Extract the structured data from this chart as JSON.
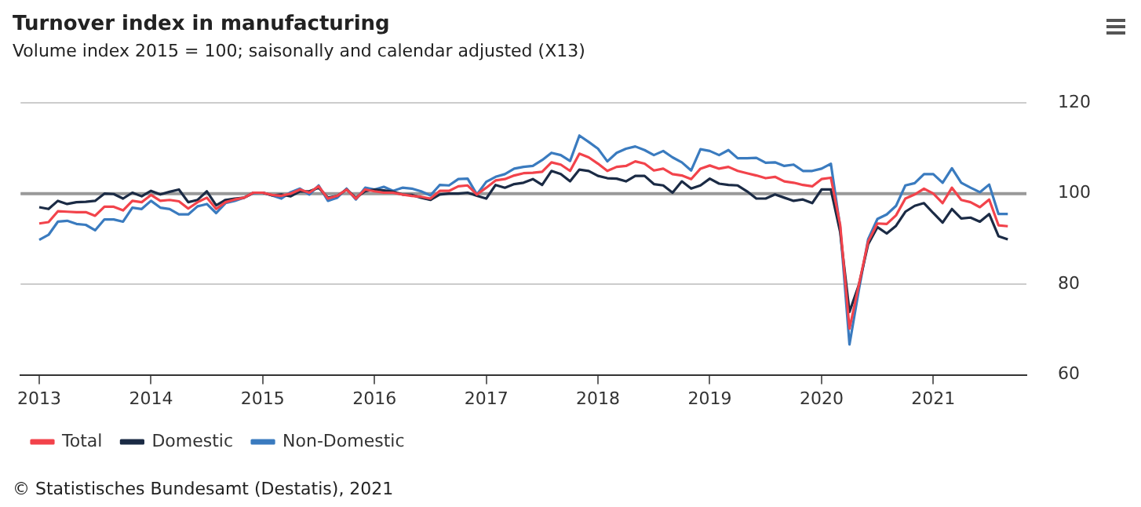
{
  "chart_data": {
    "type": "line",
    "title": "Turnover index in manufacturing",
    "subtitle": "Volume index 2015 = 100; saisonally and calendar adjusted (X13)",
    "annotations": [
      "© Statistisches Bundesamt (Destatis), 2021"
    ],
    "x": [
      "2013-01",
      "2013-02",
      "2013-03",
      "2013-04",
      "2013-05",
      "2013-06",
      "2013-07",
      "2013-08",
      "2013-09",
      "2013-10",
      "2013-11",
      "2013-12",
      "2014-01",
      "2014-02",
      "2014-03",
      "2014-04",
      "2014-05",
      "2014-06",
      "2014-07",
      "2014-08",
      "2014-09",
      "2014-10",
      "2014-11",
      "2014-12",
      "2015-01",
      "2015-02",
      "2015-03",
      "2015-04",
      "2015-05",
      "2015-06",
      "2015-07",
      "2015-08",
      "2015-09",
      "2015-10",
      "2015-11",
      "2015-12",
      "2016-01",
      "2016-02",
      "2016-03",
      "2016-04",
      "2016-05",
      "2016-06",
      "2016-07",
      "2016-08",
      "2016-09",
      "2016-10",
      "2016-11",
      "2016-12",
      "2017-01",
      "2017-02",
      "2017-03",
      "2017-04",
      "2017-05",
      "2017-06",
      "2017-07",
      "2017-08",
      "2017-09",
      "2017-10",
      "2017-11",
      "2017-12",
      "2018-01",
      "2018-02",
      "2018-03",
      "2018-04",
      "2018-05",
      "2018-06",
      "2018-07",
      "2018-08",
      "2018-09",
      "2018-10",
      "2018-11",
      "2018-12",
      "2019-01",
      "2019-02",
      "2019-03",
      "2019-04",
      "2019-05",
      "2019-06",
      "2019-07",
      "2019-08",
      "2019-09",
      "2019-10",
      "2019-11",
      "2019-12",
      "2020-01",
      "2020-02",
      "2020-03",
      "2020-04",
      "2020-05",
      "2020-06",
      "2020-07",
      "2020-08",
      "2020-09",
      "2020-10",
      "2020-11",
      "2020-12",
      "2021-01",
      "2021-02",
      "2021-03",
      "2021-04",
      "2021-05",
      "2021-06",
      "2021-07",
      "2021-08",
      "2021-09"
    ],
    "series": [
      {
        "name": "Total",
        "color": "#f2434b",
        "values": [
          93.4,
          93.7,
          96.1,
          96.0,
          95.9,
          95.9,
          95.1,
          97.1,
          97.1,
          96.3,
          98.4,
          98.1,
          99.7,
          98.4,
          98.6,
          98.3,
          96.7,
          98.1,
          99.1,
          96.6,
          98.1,
          98.7,
          99.1,
          100.2,
          100.2,
          99.7,
          99.5,
          100.0,
          100.9,
          100.2,
          101.6,
          98.9,
          99.5,
          100.9,
          98.9,
          100.9,
          100.5,
          100.2,
          100.2,
          99.8,
          99.5,
          99.3,
          98.9,
          100.6,
          100.6,
          101.6,
          101.8,
          99.8,
          101.3,
          102.9,
          103.2,
          104.0,
          104.5,
          104.6,
          104.8,
          106.9,
          106.4,
          105.0,
          108.8,
          108.0,
          106.6,
          105.0,
          105.9,
          106.1,
          107.1,
          106.6,
          105.1,
          105.5,
          104.3,
          104.0,
          103.2,
          105.5,
          106.2,
          105.5,
          105.9,
          105.0,
          104.5,
          104.0,
          103.4,
          103.7,
          102.7,
          102.4,
          101.9,
          101.6,
          103.2,
          103.5,
          93.1,
          70.2,
          79.8,
          89.4,
          93.4,
          93.3,
          95.2,
          98.9,
          99.8,
          101.1,
          100.0,
          97.9,
          101.3,
          98.6,
          98.1,
          97.0,
          98.7,
          93.0,
          92.8
        ]
      },
      {
        "name": "Domestic",
        "color": "#1b2b45",
        "values": [
          97.0,
          96.6,
          98.4,
          97.7,
          98.1,
          98.2,
          98.4,
          100.0,
          99.9,
          98.9,
          100.2,
          99.4,
          100.6,
          99.8,
          100.4,
          100.9,
          98.1,
          98.6,
          100.5,
          97.4,
          98.6,
          98.9,
          99.1,
          100.2,
          100.2,
          99.6,
          99.8,
          99.4,
          100.5,
          100.5,
          101.3,
          99.1,
          99.5,
          100.9,
          99.1,
          100.5,
          100.9,
          100.7,
          100.4,
          99.8,
          99.7,
          99.1,
          98.6,
          99.8,
          100.0,
          100.0,
          100.2,
          99.5,
          98.9,
          101.9,
          101.3,
          102.1,
          102.4,
          103.2,
          101.9,
          105.0,
          104.3,
          102.7,
          105.3,
          105.0,
          103.9,
          103.4,
          103.3,
          102.7,
          103.9,
          103.9,
          102.1,
          101.8,
          100.2,
          102.7,
          101.1,
          101.8,
          103.3,
          102.2,
          101.9,
          101.8,
          100.5,
          98.9,
          98.9,
          99.8,
          99.1,
          98.4,
          98.7,
          97.9,
          100.9,
          100.9,
          91.5,
          73.9,
          79.8,
          88.8,
          92.6,
          91.2,
          92.9,
          96.0,
          97.3,
          97.9,
          95.7,
          93.6,
          96.6,
          94.5,
          94.7,
          93.8,
          95.5,
          90.6,
          89.9
        ]
      },
      {
        "name": "Non-Domestic",
        "color": "#3a7bbf",
        "values": [
          89.8,
          90.9,
          93.8,
          94.0,
          93.3,
          93.1,
          91.9,
          94.3,
          94.3,
          93.8,
          96.9,
          96.6,
          98.4,
          96.9,
          96.6,
          95.4,
          95.4,
          97.2,
          97.7,
          95.7,
          97.9,
          98.4,
          99.1,
          100.1,
          100.2,
          99.6,
          98.9,
          100.3,
          101.1,
          99.8,
          101.8,
          98.4,
          99.1,
          101.1,
          98.7,
          101.3,
          100.9,
          101.5,
          100.6,
          101.3,
          101.1,
          100.5,
          99.6,
          101.9,
          101.8,
          103.2,
          103.3,
          99.8,
          102.6,
          103.7,
          104.3,
          105.5,
          105.9,
          106.1,
          107.4,
          109.0,
          108.5,
          107.2,
          112.8,
          111.4,
          109.9,
          107.1,
          109.0,
          109.9,
          110.4,
          109.6,
          108.5,
          109.4,
          108.0,
          106.9,
          105.1,
          109.8,
          109.4,
          108.5,
          109.6,
          107.8,
          107.8,
          107.9,
          106.8,
          106.9,
          106.1,
          106.4,
          105.0,
          105.0,
          105.5,
          106.6,
          92.6,
          66.7,
          78.7,
          89.9,
          94.4,
          95.4,
          97.3,
          101.8,
          102.3,
          104.3,
          104.3,
          102.4,
          105.6,
          102.4,
          101.3,
          100.3,
          102.0,
          95.5,
          95.5
        ]
      }
    ],
    "xlim": [
      "2012-11",
      "2021-11"
    ],
    "xticks": [
      "2013",
      "2014",
      "2015",
      "2016",
      "2017",
      "2018",
      "2019",
      "2020",
      "2021"
    ],
    "ylim": [
      60,
      120
    ],
    "yticks": [
      60,
      80,
      100,
      120
    ],
    "ref_lines": [
      {
        "axis": "y",
        "value": 100,
        "color": "#999999"
      }
    ],
    "grid": "y",
    "legend": "bottom left"
  }
}
